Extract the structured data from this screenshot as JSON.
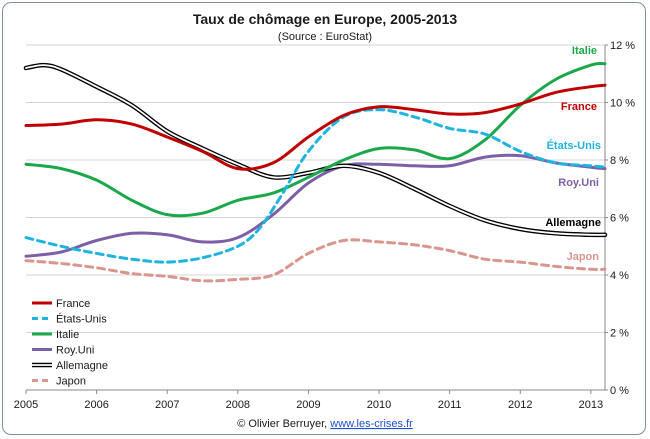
{
  "chart_data": {
    "type": "line",
    "title": "Taux de chômage en Europe, 2005-2013",
    "subtitle": "(Source : EuroStat)",
    "footer": {
      "credit": "© Olivier Berruyer, ",
      "link": "www.les-crises.fr"
    },
    "x_ticks": [
      "2005",
      "2006",
      "2007",
      "2008",
      "2009",
      "2010",
      "2011",
      "2012",
      "2013"
    ],
    "xlim": [
      2005,
      2013.2
    ],
    "ylim": [
      0,
      12
    ],
    "y_ticks": [
      0,
      2,
      4,
      6,
      8,
      10,
      12
    ],
    "y_tick_labels": [
      "0 %",
      "2 %",
      "4 %",
      "6 %",
      "8 %",
      "10 %",
      "12 %"
    ],
    "grid": "horizontal",
    "legend_position": "bottom-left",
    "series": [
      {
        "name": "France",
        "color": "#c00000",
        "style": "solid",
        "x": [
          2005,
          2005.5,
          2006,
          2006.5,
          2007,
          2007.5,
          2008,
          2008.5,
          2009,
          2009.5,
          2010,
          2010.5,
          2011,
          2011.5,
          2012,
          2012.5,
          2013,
          2013.2
        ],
        "y": [
          9.2,
          9.25,
          9.4,
          9.25,
          8.8,
          8.3,
          7.7,
          7.9,
          8.8,
          9.55,
          9.85,
          9.75,
          9.6,
          9.65,
          9.95,
          10.35,
          10.55,
          10.6
        ]
      },
      {
        "name": "États-Unis",
        "color": "#1fb3e0",
        "style": "dashed",
        "x": [
          2005,
          2005.5,
          2006,
          2006.5,
          2007,
          2007.5,
          2008,
          2008.3,
          2008.6,
          2009,
          2009.5,
          2010,
          2010.5,
          2011,
          2011.5,
          2012,
          2012.5,
          2013,
          2013.2
        ],
        "y": [
          5.3,
          5.0,
          4.75,
          4.55,
          4.45,
          4.6,
          5.0,
          5.6,
          6.7,
          8.3,
          9.5,
          9.75,
          9.5,
          9.1,
          8.9,
          8.3,
          7.9,
          7.8,
          7.75
        ]
      },
      {
        "name": "Italie",
        "color": "#1ba84a",
        "style": "solid",
        "x": [
          2005,
          2005.5,
          2006,
          2006.5,
          2007,
          2007.5,
          2008,
          2008.5,
          2009,
          2009.5,
          2010,
          2010.5,
          2011,
          2011.5,
          2012,
          2012.5,
          2013,
          2013.2
        ],
        "y": [
          7.85,
          7.7,
          7.3,
          6.6,
          6.1,
          6.15,
          6.6,
          6.85,
          7.4,
          8.0,
          8.4,
          8.35,
          8.05,
          8.7,
          9.9,
          10.8,
          11.3,
          11.35
        ]
      },
      {
        "name": "Roy.Uni",
        "color": "#7d5fa8",
        "style": "solid",
        "x": [
          2005,
          2005.5,
          2006,
          2006.5,
          2007,
          2007.5,
          2008,
          2008.5,
          2009,
          2009.5,
          2010,
          2010.5,
          2011,
          2011.5,
          2012,
          2012.5,
          2013,
          2013.2
        ],
        "y": [
          4.65,
          4.8,
          5.2,
          5.45,
          5.4,
          5.15,
          5.3,
          6.1,
          7.2,
          7.8,
          7.85,
          7.8,
          7.8,
          8.1,
          8.15,
          7.9,
          7.75,
          7.7
        ]
      },
      {
        "name": "Allemagne",
        "color": "#000000",
        "style": "double",
        "x": [
          2005,
          2005.25,
          2005.5,
          2006,
          2006.5,
          2007,
          2007.5,
          2008,
          2008.5,
          2009,
          2009.5,
          2010,
          2010.5,
          2011,
          2011.5,
          2012,
          2012.5,
          2013,
          2013.2
        ],
        "y": [
          11.2,
          11.3,
          11.15,
          10.55,
          9.9,
          9.0,
          8.4,
          7.85,
          7.4,
          7.55,
          7.8,
          7.55,
          7.0,
          6.4,
          5.9,
          5.6,
          5.45,
          5.4,
          5.4
        ]
      },
      {
        "name": "Japon",
        "color": "#d9968f",
        "style": "dashed",
        "x": [
          2005,
          2005.5,
          2006,
          2006.5,
          2007,
          2007.5,
          2008,
          2008.5,
          2009,
          2009.5,
          2010,
          2010.5,
          2011,
          2011.5,
          2012,
          2012.5,
          2013,
          2013.2
        ],
        "y": [
          4.5,
          4.4,
          4.25,
          4.05,
          3.95,
          3.8,
          3.85,
          4.0,
          4.75,
          5.2,
          5.15,
          5.05,
          4.85,
          4.55,
          4.45,
          4.3,
          4.2,
          4.2
        ]
      }
    ]
  }
}
